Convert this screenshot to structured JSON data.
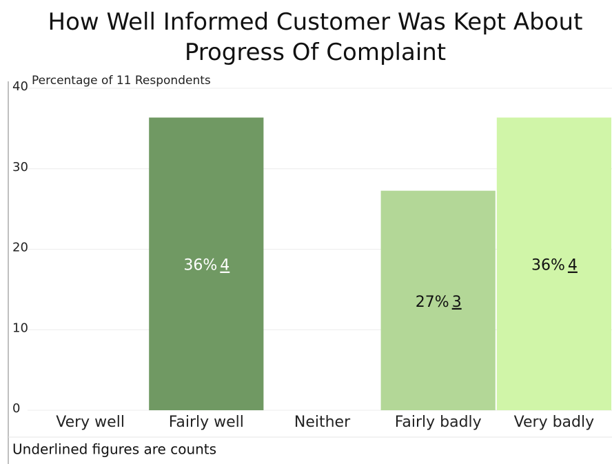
{
  "chart_data": {
    "type": "bar",
    "title": "How Well Informed Customer Was Kept About Progress Of Complaint",
    "y_label": "Percentage of 11 Respondents",
    "footnote": "Underlined figures are counts",
    "categories": [
      "Very well",
      "Fairly well",
      "Neither",
      "Fairly badly",
      "Very badly"
    ],
    "values": [
      0,
      36.36,
      0,
      27.27,
      36.36
    ],
    "value_labels": [
      null,
      "36%",
      null,
      "27%",
      "36%"
    ],
    "counts": [
      null,
      4,
      null,
      3,
      4
    ],
    "colors": [
      "#4e7a43",
      "#709963",
      "#93bd80",
      "#b3d797",
      "#d0f5a8"
    ],
    "ylim": [
      0,
      40
    ],
    "yticks": [
      0,
      10,
      20,
      30,
      40
    ],
    "grid": true
  }
}
